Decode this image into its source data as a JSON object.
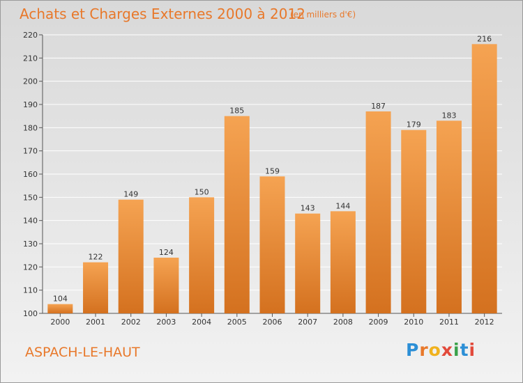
{
  "title": "Achats et Charges Externes 2000 à 2012",
  "subtitle": "(en milliers d'€)",
  "place": "ASPACH-LE-HAUT",
  "logo": {
    "letters": [
      "P",
      "r",
      "o",
      "x",
      "i",
      "t",
      "i"
    ],
    "colors": [
      "#2c8fd6",
      "#e8782a",
      "#f0b21e",
      "#e24a3b",
      "#3aa14a",
      "#2c8fd6",
      "#e24a3b"
    ]
  },
  "colors": {
    "bar_top": "#f5a352",
    "bar_bottom": "#d4711f",
    "text_accent": "#e8782a"
  },
  "chart_data": {
    "type": "bar",
    "title": "Achats et Charges Externes 2000 à 2012",
    "subtitle": "(en milliers d'€)",
    "categories": [
      "2000",
      "2001",
      "2002",
      "2003",
      "2004",
      "2005",
      "2006",
      "2007",
      "2008",
      "2009",
      "2010",
      "2011",
      "2012"
    ],
    "values": [
      104,
      122,
      149,
      124,
      150,
      185,
      159,
      143,
      144,
      187,
      179,
      183,
      216
    ],
    "ylim": [
      100,
      220
    ],
    "yticks": [
      100,
      110,
      120,
      130,
      140,
      150,
      160,
      170,
      180,
      190,
      200,
      210,
      220
    ],
    "grid": true,
    "legend": false
  }
}
